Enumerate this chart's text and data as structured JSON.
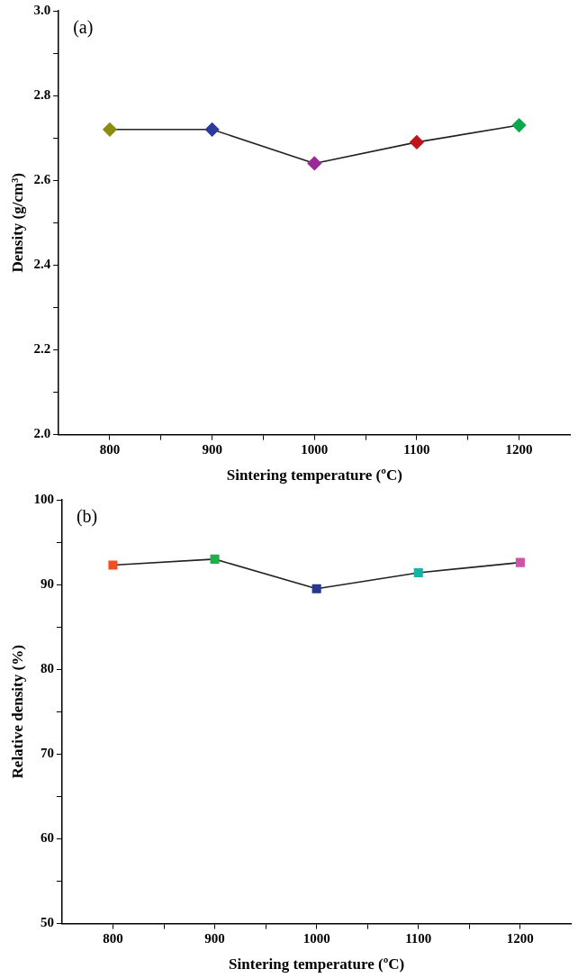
{
  "chart_data": [
    {
      "type": "line",
      "annotations": [
        "(a)"
      ],
      "xlabel": "Sintering temperature (ºC)",
      "ylabel": "Density (g/cm³)",
      "x": [
        800,
        900,
        1000,
        1100,
        1200
      ],
      "series": [
        {
          "color": "#222222",
          "colors": [
            "#8f8a10",
            "#2c3a9a",
            "#9a2a9a",
            "#c0141c",
            "#0aa84a"
          ],
          "values": [
            2.72,
            2.72,
            2.64,
            2.69,
            2.73
          ]
        }
      ],
      "xlim": [
        750,
        1250
      ],
      "xticks": [
        800,
        {
          "value": 850,
          "label": null
        },
        900,
        {
          "value": 950,
          "label": null
        },
        1000,
        {
          "value": 1050,
          "label": null
        },
        1100,
        {
          "value": 1150,
          "label": null
        },
        1200
      ],
      "ylim": [
        2.0,
        3.0
      ],
      "yticks": [
        {
          "value": 2.0,
          "label": "2.0"
        },
        {
          "value": 2.1,
          "label": null
        },
        2.2,
        {
          "value": 2.3,
          "label": null
        },
        2.4,
        {
          "value": 2.5,
          "label": null
        },
        2.6,
        {
          "value": 2.7,
          "label": null
        },
        2.8,
        {
          "value": 2.9,
          "label": null
        },
        {
          "value": 3.0,
          "label": "3.0"
        }
      ],
      "grid": false,
      "legend": false,
      "marker": "diamond",
      "line_style": "solid"
    },
    {
      "type": "line",
      "annotations": [
        "(b)"
      ],
      "xlabel": "Sintering temperature (ºC)",
      "ylabel": "Relative density (%)",
      "x": [
        800,
        900,
        1000,
        1100,
        1200
      ],
      "series": [
        {
          "color": "#222222",
          "colors": [
            "#f04e23",
            "#1fb04a",
            "#2b3592",
            "#14b5a8",
            "#cc55a8"
          ],
          "values": [
            92.3,
            93.0,
            89.5,
            91.4,
            92.6
          ]
        }
      ],
      "xlim": [
        750,
        1250
      ],
      "xticks": [
        800,
        {
          "value": 850,
          "label": null
        },
        900,
        {
          "value": 950,
          "label": null
        },
        1000,
        {
          "value": 1050,
          "label": null
        },
        1100,
        {
          "value": 1150,
          "label": null
        },
        1200
      ],
      "ylim": [
        50,
        100
      ],
      "yticks": [
        50,
        {
          "value": 55,
          "label": null
        },
        60,
        {
          "value": 65,
          "label": null
        },
        70,
        {
          "value": 75,
          "label": null
        },
        80,
        {
          "value": 85,
          "label": null
        },
        90,
        {
          "value": 95,
          "label": null
        },
        100
      ],
      "grid": false,
      "legend": false,
      "marker": "square",
      "line_style": "solid"
    }
  ]
}
